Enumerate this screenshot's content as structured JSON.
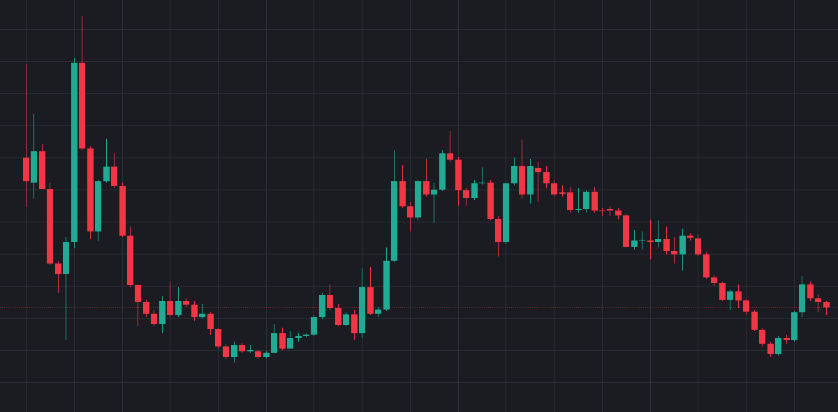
{
  "chart_data": {
    "type": "candlestick",
    "up_color": "#22ab94",
    "down_color": "#f23645",
    "grid": true,
    "ylim": [
      0,
      591
    ],
    "yticks": [
      43,
      89,
      135,
      181,
      227,
      273,
      319,
      365,
      411,
      457,
      503,
      549
    ],
    "xlim": [
      -3.23,
      101.5
    ],
    "xticks": [
      0,
      6,
      12,
      18,
      24,
      30,
      36,
      42,
      48,
      54,
      60,
      66,
      72,
      78,
      84,
      90,
      96
    ],
    "open": [
      365,
      329,
      374,
      320,
      213,
      198,
      244,
      501,
      378,
      259,
      331,
      352,
      324,
      253,
      182,
      158,
      141,
      126,
      159,
      139,
      159,
      154,
      136,
      141,
      119,
      94,
      79,
      96,
      87,
      87,
      79,
      85,
      113,
      91,
      106,
      109,
      111,
      136,
      168,
      149,
      125,
      140,
      113,
      179,
      141,
      147,
      217,
      331,
      295,
      279,
      331,
      312,
      319,
      371,
      362,
      318,
      307,
      328,
      329,
      277,
      244,
      328,
      353,
      312,
      350,
      344,
      328,
      315,
      315,
      290,
      291,
      316,
      289,
      291,
      289,
      282,
      237,
      246,
      246,
      244,
      248,
      231,
      226,
      253,
      249,
      226,
      193,
      185,
      161,
      173,
      160,
      144,
      118,
      98,
      83,
      106,
      103,
      143,
      183,
      163,
      158
    ],
    "high": [
      499,
      428,
      384,
      329,
      216,
      251,
      508,
      568,
      381,
      333,
      392,
      371,
      329,
      266,
      183,
      161,
      146,
      166,
      187,
      179,
      163,
      159,
      155,
      143,
      121,
      97,
      101,
      99,
      96,
      89,
      87,
      126,
      121,
      116,
      113,
      113,
      139,
      171,
      183,
      155,
      143,
      146,
      206,
      208,
      151,
      236,
      376,
      354,
      301,
      333,
      363,
      329,
      376,
      403,
      366,
      321,
      333,
      351,
      333,
      281,
      329,
      365,
      391,
      363,
      359,
      353,
      333,
      325,
      323,
      321,
      318,
      323,
      293,
      295,
      293,
      284,
      261,
      259,
      276,
      275,
      266,
      251,
      263,
      257,
      255,
      229,
      196,
      187,
      176,
      183,
      162,
      146,
      120,
      101,
      109,
      111,
      145,
      195,
      187,
      169,
      159
    ],
    "low": [
      294,
      306,
      320,
      211,
      171,
      103,
      235,
      376,
      248,
      245,
      329,
      321,
      251,
      179,
      123,
      136,
      123,
      113,
      136,
      136,
      151,
      131,
      134,
      111,
      91,
      76,
      71,
      85,
      85,
      76,
      77,
      84,
      89,
      91,
      101,
      107,
      109,
      133,
      146,
      123,
      123,
      103,
      106,
      139,
      136,
      145,
      215,
      293,
      259,
      276,
      309,
      271,
      317,
      359,
      296,
      296,
      304,
      326,
      275,
      223,
      241,
      325,
      306,
      299,
      301,
      321,
      309,
      309,
      286,
      286,
      286,
      286,
      281,
      281,
      276,
      236,
      233,
      233,
      219,
      236,
      226,
      213,
      203,
      246,
      224,
      191,
      181,
      159,
      146,
      149,
      139,
      116,
      94,
      79,
      81,
      98,
      101,
      136,
      159,
      143,
      139
    ],
    "close": [
      331,
      374,
      320,
      213,
      198,
      244,
      501,
      378,
      259,
      331,
      352,
      324,
      253,
      182,
      158,
      141,
      126,
      159,
      139,
      159,
      154,
      136,
      141,
      119,
      94,
      79,
      96,
      87,
      89,
      79,
      85,
      113,
      91,
      106,
      109,
      111,
      136,
      168,
      149,
      125,
      140,
      113,
      179,
      141,
      147,
      217,
      331,
      295,
      279,
      331,
      312,
      319,
      371,
      362,
      318,
      307,
      328,
      329,
      277,
      244,
      328,
      353,
      312,
      353,
      344,
      328,
      312,
      313,
      290,
      291,
      316,
      289,
      288,
      289,
      282,
      237,
      246,
      247,
      244,
      248,
      231,
      226,
      253,
      250,
      226,
      193,
      185,
      161,
      173,
      160,
      144,
      118,
      98,
      83,
      106,
      103,
      143,
      183,
      163,
      158,
      150
    ]
  }
}
